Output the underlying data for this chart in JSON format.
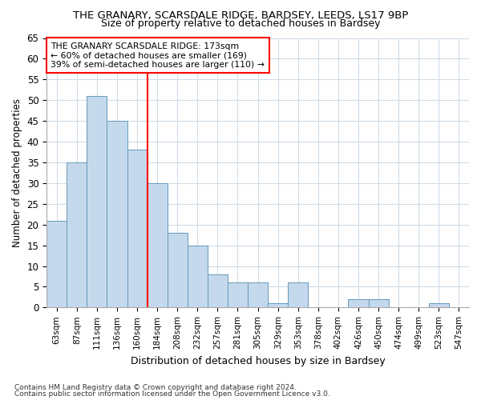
{
  "title": "THE GRANARY, SCARSDALE RIDGE, BARDSEY, LEEDS, LS17 9BP",
  "subtitle": "Size of property relative to detached houses in Bardsey",
  "xlabel": "Distribution of detached houses by size in Bardsey",
  "ylabel": "Number of detached properties",
  "categories": [
    "63sqm",
    "87sqm",
    "111sqm",
    "136sqm",
    "160sqm",
    "184sqm",
    "208sqm",
    "232sqm",
    "257sqm",
    "281sqm",
    "305sqm",
    "329sqm",
    "353sqm",
    "378sqm",
    "402sqm",
    "426sqm",
    "450sqm",
    "474sqm",
    "499sqm",
    "523sqm",
    "547sqm"
  ],
  "values": [
    21,
    35,
    51,
    45,
    38,
    30,
    18,
    15,
    8,
    6,
    6,
    1,
    6,
    0,
    0,
    2,
    2,
    0,
    0,
    1,
    0
  ],
  "bar_color": "#c5d9ec",
  "bar_edge_color": "#6699bb",
  "red_line_index": 5,
  "annotation_title": "THE GRANARY SCARSDALE RIDGE: 173sqm",
  "annotation_line1": "← 60% of detached houses are smaller (169)",
  "annotation_line2": "39% of semi-detached houses are larger (110) →",
  "ylim": [
    0,
    65
  ],
  "yticks": [
    0,
    5,
    10,
    15,
    20,
    25,
    30,
    35,
    40,
    45,
    50,
    55,
    60,
    65
  ],
  "footer1": "Contains HM Land Registry data © Crown copyright and database right 2024.",
  "footer2": "Contains public sector information licensed under the Open Government Licence v3.0.",
  "bg_color": "#ffffff",
  "grid_color": "#d0dce8"
}
